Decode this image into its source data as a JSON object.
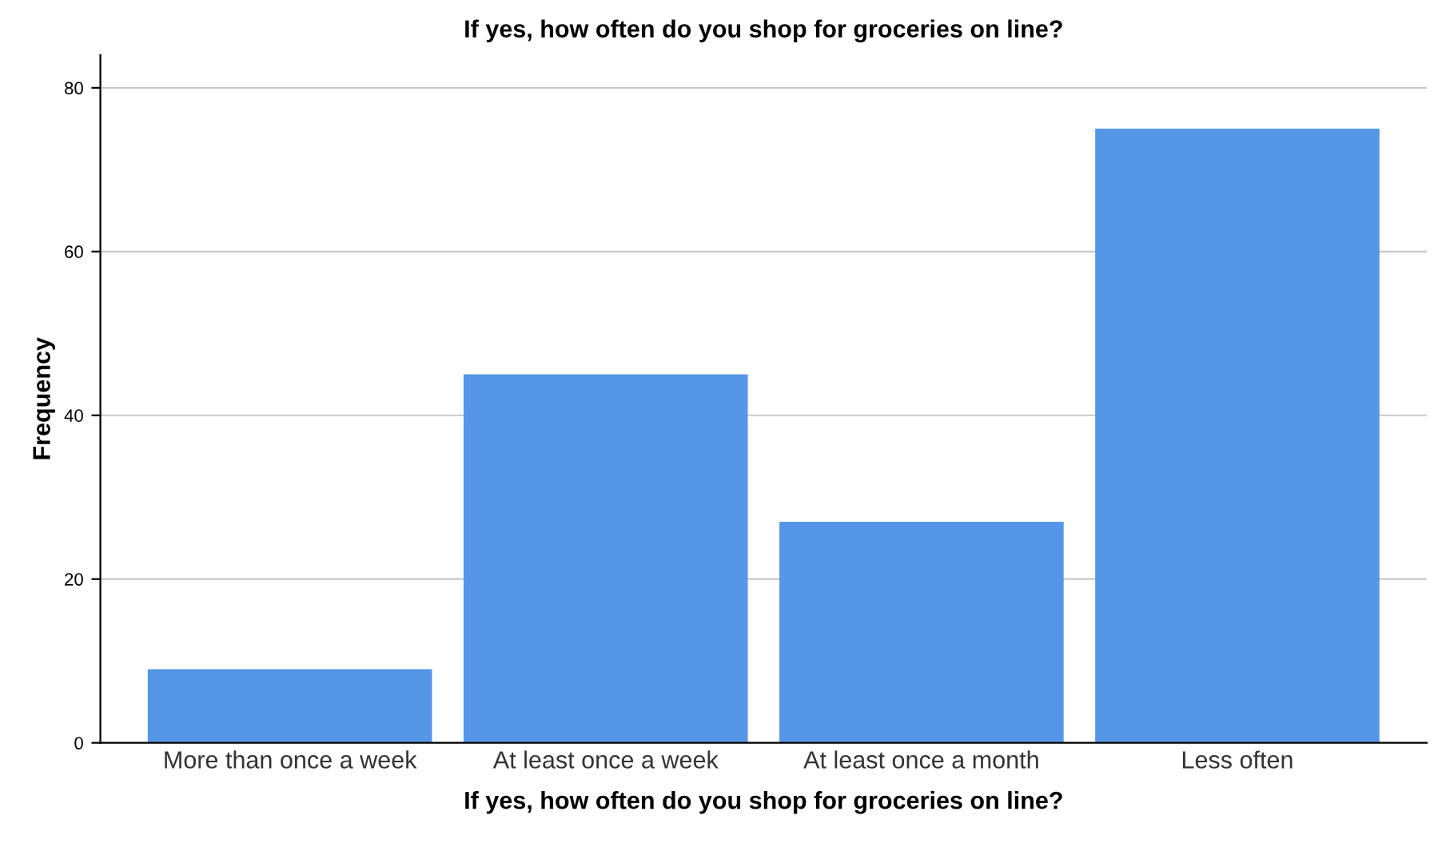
{
  "chart_data": {
    "type": "bar",
    "title": "If yes, how often do you shop for groceries on line?",
    "xlabel": "If yes, how often do you shop for groceries on line?",
    "ylabel": "Frequency",
    "categories": [
      "More than once a week",
      "At least once a week",
      "At least once a month",
      "Less often"
    ],
    "values": [
      9,
      45,
      27,
      75
    ],
    "color": "#5596e6",
    "ylim": [
      0,
      84
    ],
    "yticks": [
      0,
      20,
      40,
      60,
      80
    ],
    "grid": "y",
    "legend": false
  }
}
